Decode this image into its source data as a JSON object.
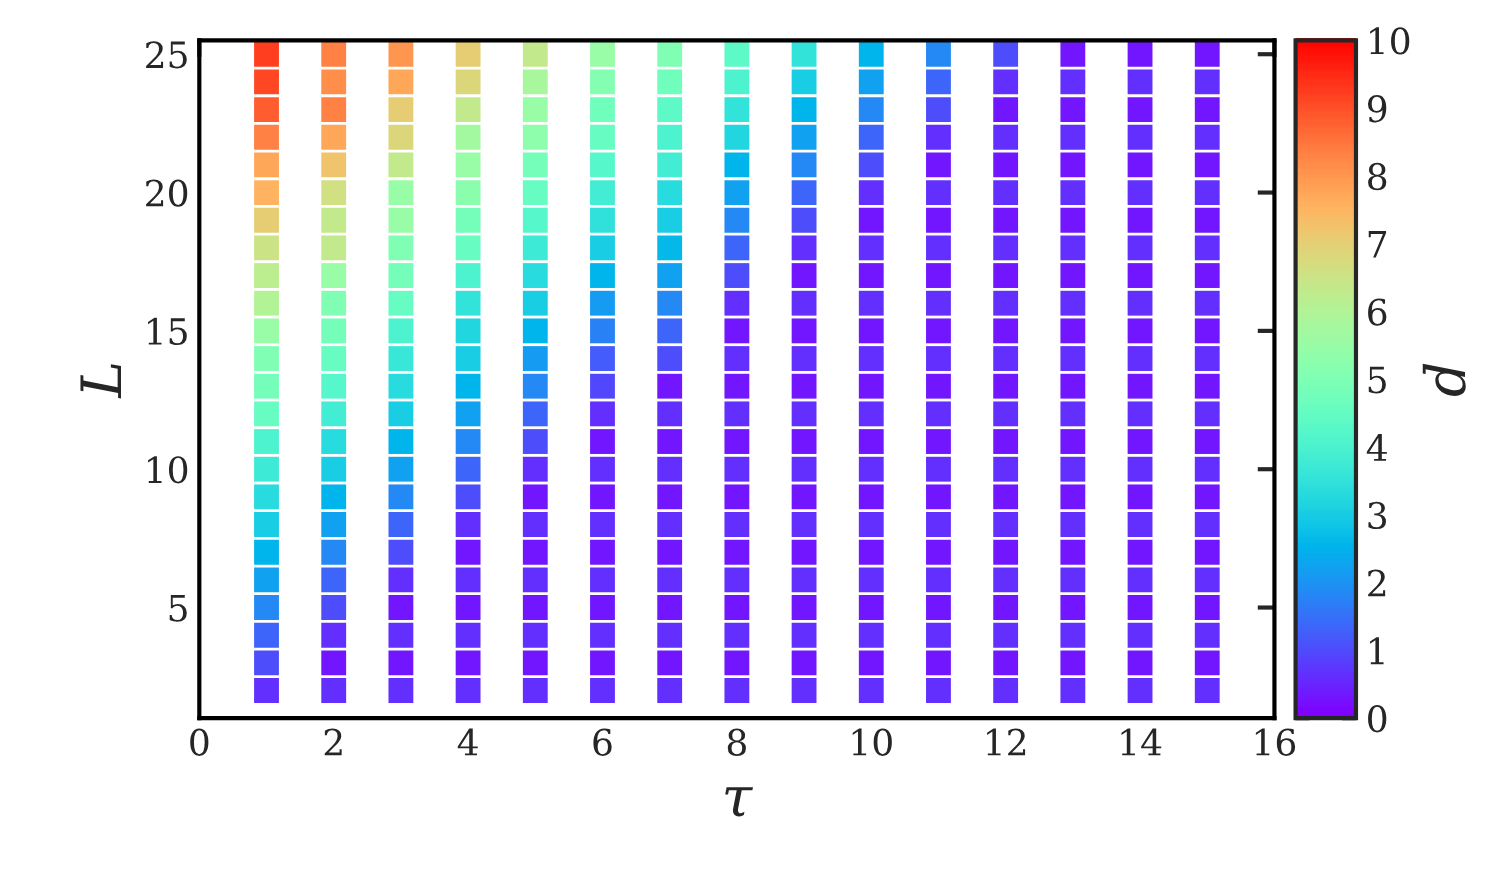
{
  "chart_data": {
    "type": "scatter",
    "xlabel": "τ",
    "ylabel": "L",
    "clabel": "d",
    "marker": "square",
    "xlim": [
      0,
      16
    ],
    "xticks": [
      0,
      2,
      4,
      6,
      8,
      10,
      12,
      14,
      16
    ],
    "ylim": [
      1,
      25.5
    ],
    "yticks": [
      5,
      10,
      15,
      20,
      25
    ],
    "clim": [
      0,
      10
    ],
    "cticks": [
      0,
      1,
      2,
      3,
      4,
      5,
      6,
      7,
      8,
      9,
      10
    ],
    "grid": false,
    "legend": false,
    "x": [
      1,
      1,
      1,
      1,
      1,
      1,
      1,
      1,
      1,
      1,
      1,
      1,
      1,
      1,
      1,
      1,
      1,
      1,
      1,
      1,
      1,
      1,
      1,
      1,
      2,
      2,
      2,
      2,
      2,
      2,
      2,
      2,
      2,
      2,
      2,
      2,
      2,
      2,
      2,
      2,
      2,
      2,
      2,
      2,
      2,
      2,
      2,
      2,
      3,
      3,
      3,
      3,
      3,
      3,
      3,
      3,
      3,
      3,
      3,
      3,
      3,
      3,
      3,
      3,
      3,
      3,
      3,
      3,
      3,
      3,
      3,
      3,
      4,
      4,
      4,
      4,
      4,
      4,
      4,
      4,
      4,
      4,
      4,
      4,
      4,
      4,
      4,
      4,
      4,
      4,
      4,
      4,
      4,
      4,
      4,
      4,
      5,
      5,
      5,
      5,
      5,
      5,
      5,
      5,
      5,
      5,
      5,
      5,
      5,
      5,
      5,
      5,
      5,
      5,
      5,
      5,
      5,
      5,
      5,
      5,
      6,
      6,
      6,
      6,
      6,
      6,
      6,
      6,
      6,
      6,
      6,
      6,
      6,
      6,
      6,
      6,
      6,
      6,
      6,
      6,
      6,
      6,
      6,
      6,
      7,
      7,
      7,
      7,
      7,
      7,
      7,
      7,
      7,
      7,
      7,
      7,
      7,
      7,
      7,
      7,
      7,
      7,
      7,
      7,
      7,
      7,
      7,
      7,
      8,
      8,
      8,
      8,
      8,
      8,
      8,
      8,
      8,
      8,
      8,
      8,
      8,
      8,
      8,
      8,
      8,
      8,
      8,
      8,
      8,
      8,
      8,
      8,
      9,
      9,
      9,
      9,
      9,
      9,
      9,
      9,
      9,
      9,
      9,
      9,
      9,
      9,
      9,
      9,
      9,
      9,
      9,
      9,
      9,
      9,
      9,
      9,
      10,
      10,
      10,
      10,
      10,
      10,
      10,
      10,
      10,
      10,
      10,
      10,
      10,
      10,
      10,
      10,
      10,
      10,
      10,
      10,
      10,
      10,
      10,
      10,
      11,
      11,
      11,
      11,
      11,
      11,
      11,
      11,
      11,
      11,
      11,
      11,
      11,
      11,
      11,
      11,
      11,
      11,
      11,
      11,
      11,
      11,
      11,
      11,
      12,
      12,
      12,
      12,
      12,
      12,
      12,
      12,
      12,
      12,
      12,
      12,
      12,
      12,
      12,
      12,
      12,
      12,
      12,
      12,
      12,
      12,
      12,
      12,
      13,
      13,
      13,
      13,
      13,
      13,
      13,
      13,
      13,
      13,
      13,
      13,
      13,
      13,
      13,
      13,
      13,
      13,
      13,
      13,
      13,
      13,
      13,
      13,
      14,
      14,
      14,
      14,
      14,
      14,
      14,
      14,
      14,
      14,
      14,
      14,
      14,
      14,
      14,
      14,
      14,
      14,
      14,
      14,
      14,
      14,
      14,
      14,
      15,
      15,
      15,
      15,
      15,
      15,
      15,
      15,
      15,
      15,
      15,
      15,
      15,
      15,
      15,
      15,
      15,
      15,
      15,
      15,
      15,
      15,
      15,
      15
    ],
    "values": [
      25,
      24,
      23,
      22,
      21,
      20,
      19,
      18,
      17,
      16,
      15,
      14,
      13,
      12,
      11,
      10,
      9,
      8,
      7,
      6,
      5,
      4,
      3,
      2,
      25,
      24,
      23,
      22,
      21,
      20,
      19,
      18,
      17,
      16,
      15,
      14,
      13,
      12,
      11,
      10,
      9,
      8,
      7,
      6,
      5,
      4,
      3,
      2,
      25,
      24,
      23,
      22,
      21,
      20,
      19,
      18,
      17,
      16,
      15,
      14,
      13,
      12,
      11,
      10,
      9,
      8,
      7,
      6,
      5,
      4,
      3,
      2,
      25,
      24,
      23,
      22,
      21,
      20,
      19,
      18,
      17,
      16,
      15,
      14,
      13,
      12,
      11,
      10,
      9,
      8,
      7,
      6,
      5,
      4,
      3,
      2,
      25,
      24,
      23,
      22,
      21,
      20,
      19,
      18,
      17,
      16,
      15,
      14,
      13,
      12,
      11,
      10,
      9,
      8,
      7,
      6,
      5,
      4,
      3,
      2,
      25,
      24,
      23,
      22,
      21,
      20,
      19,
      18,
      17,
      16,
      15,
      14,
      13,
      12,
      11,
      10,
      9,
      8,
      7,
      6,
      5,
      4,
      3,
      2,
      25,
      24,
      23,
      22,
      21,
      20,
      19,
      18,
      17,
      16,
      15,
      14,
      13,
      12,
      11,
      10,
      9,
      8,
      7,
      6,
      5,
      4,
      3,
      2,
      25,
      24,
      23,
      22,
      21,
      20,
      19,
      18,
      17,
      16,
      15,
      14,
      13,
      12,
      11,
      10,
      9,
      8,
      7,
      6,
      5,
      4,
      3,
      2,
      25,
      24,
      23,
      22,
      21,
      20,
      19,
      18,
      17,
      16,
      15,
      14,
      13,
      12,
      11,
      10,
      9,
      8,
      7,
      6,
      5,
      4,
      3,
      2,
      25,
      24,
      23,
      22,
      21,
      20,
      19,
      18,
      17,
      16,
      15,
      14,
      13,
      12,
      11,
      10,
      9,
      8,
      7,
      6,
      5,
      4,
      3,
      2,
      25,
      24,
      23,
      22,
      21,
      20,
      19,
      18,
      17,
      16,
      15,
      14,
      13,
      12,
      11,
      10,
      9,
      8,
      7,
      6,
      5,
      4,
      3,
      2,
      25,
      24,
      23,
      22,
      21,
      20,
      19,
      18,
      17,
      16,
      15,
      14,
      13,
      12,
      11,
      10,
      9,
      8,
      7,
      6,
      5,
      4,
      3,
      2,
      25,
      24,
      23,
      22,
      21,
      20,
      19,
      18,
      17,
      16,
      15,
      14,
      13,
      12,
      11,
      10,
      9,
      8,
      7,
      6,
      5,
      4,
      3,
      2,
      25,
      24,
      23,
      22,
      21,
      20,
      19,
      18,
      17,
      16,
      15,
      14,
      13,
      12,
      11,
      10,
      9,
      8,
      7,
      6,
      5,
      4,
      3,
      2,
      25,
      24,
      23,
      22,
      21,
      20,
      19,
      18,
      17,
      16,
      15,
      14,
      13,
      12,
      11,
      10,
      9,
      8,
      7,
      6,
      5,
      4,
      3,
      2
    ],
    "cvalues": [
      9.2,
      9.1,
      8.8,
      8.3,
      7.7,
      7.5,
      7.0,
      6.5,
      6.2,
      6.0,
      5.5,
      5.0,
      4.8,
      4.5,
      4.0,
      3.7,
      3.3,
      3.0,
      2.5,
      2.2,
      1.8,
      1.3,
      1.0,
      0.6,
      8.3,
      8.1,
      8.3,
      7.7,
      7.2,
      6.6,
      6.3,
      6.3,
      5.5,
      5.0,
      4.8,
      4.5,
      4.2,
      3.8,
      3.3,
      3.0,
      2.5,
      2.2,
      1.8,
      1.3,
      1.0,
      0.6,
      0.3,
      0.6,
      8.0,
      7.7,
      7.0,
      6.8,
      6.3,
      5.5,
      5.5,
      5.0,
      4.8,
      4.5,
      4.0,
      3.6,
      3.3,
      3.0,
      2.5,
      2.2,
      1.8,
      1.3,
      1.0,
      0.6,
      0.3,
      0.6,
      0.3,
      0.6,
      7.0,
      6.8,
      6.3,
      5.7,
      5.5,
      5.2,
      4.8,
      4.5,
      4.0,
      3.5,
      3.2,
      3.0,
      2.5,
      2.2,
      1.8,
      1.3,
      1.0,
      0.6,
      0.3,
      0.6,
      0.3,
      0.6,
      0.3,
      0.6,
      6.3,
      5.8,
      5.5,
      5.3,
      4.8,
      4.5,
      4.2,
      3.7,
      3.3,
      3.0,
      2.5,
      2.1,
      1.8,
      1.3,
      1.0,
      0.6,
      0.3,
      0.6,
      0.3,
      0.6,
      0.3,
      0.6,
      0.3,
      0.6,
      5.5,
      5.1,
      4.7,
      4.5,
      4.2,
      3.8,
      3.4,
      3.0,
      2.5,
      2.1,
      1.7,
      1.2,
      0.9,
      0.6,
      0.3,
      0.6,
      0.3,
      0.6,
      0.3,
      0.6,
      0.3,
      0.6,
      0.3,
      0.6,
      5.0,
      4.7,
      4.3,
      4.0,
      3.8,
      3.3,
      3.0,
      2.6,
      2.2,
      1.8,
      1.3,
      1.0,
      0.3,
      0.6,
      0.3,
      0.6,
      0.3,
      0.6,
      0.3,
      0.6,
      0.3,
      0.6,
      0.3,
      0.6,
      4.3,
      4.0,
      3.5,
      3.2,
      2.5,
      2.2,
      1.8,
      1.3,
      1.0,
      0.6,
      0.3,
      0.6,
      0.3,
      0.6,
      0.3,
      0.6,
      0.3,
      0.6,
      0.3,
      0.6,
      0.3,
      0.6,
      0.3,
      0.6,
      3.5,
      3.0,
      2.5,
      2.2,
      1.8,
      1.3,
      1.0,
      0.6,
      0.3,
      0.6,
      0.3,
      0.6,
      0.3,
      0.6,
      0.3,
      0.6,
      0.3,
      0.6,
      0.3,
      0.6,
      0.3,
      0.6,
      0.3,
      0.6,
      2.5,
      2.2,
      1.8,
      1.3,
      1.0,
      0.6,
      0.3,
      0.6,
      0.3,
      0.6,
      0.3,
      0.6,
      0.3,
      0.6,
      0.3,
      0.6,
      0.3,
      0.6,
      0.3,
      0.6,
      0.3,
      0.6,
      0.3,
      0.6,
      1.8,
      1.3,
      1.0,
      0.6,
      0.3,
      0.6,
      0.3,
      0.6,
      0.3,
      0.6,
      0.3,
      0.6,
      0.3,
      0.6,
      0.3,
      0.6,
      0.3,
      0.6,
      0.3,
      0.6,
      0.3,
      0.6,
      0.3,
      0.6,
      1.0,
      0.6,
      0.3,
      0.6,
      0.3,
      0.6,
      0.3,
      0.6,
      0.3,
      0.6,
      0.3,
      0.6,
      0.3,
      0.6,
      0.3,
      0.6,
      0.3,
      0.6,
      0.3,
      0.6,
      0.3,
      0.6,
      0.3,
      0.6,
      0.3,
      0.6,
      0.3,
      0.6,
      0.3,
      0.6,
      0.3,
      0.6,
      0.3,
      0.6,
      0.3,
      0.6,
      0.3,
      0.6,
      0.3,
      0.6,
      0.3,
      0.6,
      0.3,
      0.6,
      0.3,
      0.6,
      0.3,
      0.6,
      0.3,
      0.6,
      0.3,
      0.6,
      0.3,
      0.6,
      0.3,
      0.6,
      0.3,
      0.6,
      0.3,
      0.6,
      0.3,
      0.6,
      0.3,
      0.6,
      0.3,
      0.6,
      0.3,
      0.6,
      0.3,
      0.6,
      0.3,
      0.6,
      0.3,
      0.6,
      0.3,
      0.6,
      0.3,
      0.6,
      0.3,
      0.6,
      0.3,
      0.6,
      0.3,
      0.6,
      0.3,
      0.6,
      0.3,
      0.6,
      0.3,
      0.6,
      0.3,
      0.6,
      0.3,
      0.6,
      0.3,
      0.6
    ]
  }
}
